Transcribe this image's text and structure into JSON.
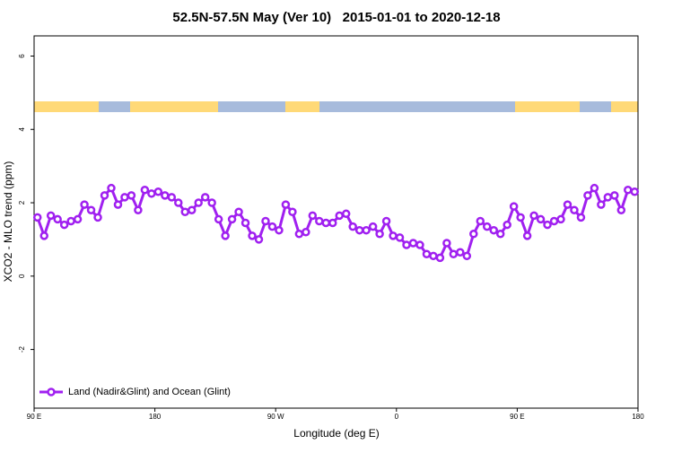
{
  "chart_data": {
    "type": "line",
    "title": "52.5N-57.5N May (Ver 10)   2015-01-01 to 2020-12-18",
    "xlabel": "Longitude (deg E)",
    "ylabel": "XCO2 - MLO trend (ppm)",
    "x": [
      92.5,
      97.5,
      102.5,
      107.5,
      112.5,
      117.5,
      122.5,
      127.5,
      132.5,
      137.5,
      142.5,
      147.5,
      152.5,
      157.5,
      162.5,
      167.5,
      172.5,
      177.5,
      182.5,
      187.5,
      192.5,
      197.5,
      202.5,
      207.5,
      212.5,
      217.5,
      222.5,
      227.5,
      232.5,
      237.5,
      242.5,
      247.5,
      252.5,
      257.5,
      262.5,
      267.5,
      272.5,
      277.5,
      282.5,
      287.5,
      292.5,
      297.5,
      302.5,
      307.5,
      312.5,
      317.5,
      322.5,
      327.5,
      332.5,
      337.5,
      342.5,
      347.5,
      352.5,
      357.5,
      362.5,
      367.5,
      372.5,
      377.5,
      382.5,
      387.5,
      392.5,
      397.5,
      402.5,
      407.5,
      412.5,
      417.5,
      422.5,
      427.5,
      432.5,
      437.5,
      442.5,
      447.5,
      452.5,
      457.5,
      462.5,
      467.5,
      472.5,
      477.5,
      482.5,
      487.5,
      492.5,
      497.5,
      502.5,
      507.5,
      512.5,
      517.5,
      522.5,
      527.5,
      532.5,
      537.5
    ],
    "series": [
      {
        "name": "Land (Nadir&Glint) and Ocean (Glint)",
        "color": "#a020f0",
        "values": [
          1.6,
          1.1,
          1.65,
          1.55,
          1.4,
          1.5,
          1.55,
          1.95,
          1.8,
          1.6,
          2.2,
          2.4,
          1.95,
          2.15,
          2.2,
          1.8,
          2.35,
          2.25,
          2.3,
          2.2,
          2.15,
          2.0,
          1.75,
          1.8,
          2.0,
          2.15,
          2.0,
          1.55,
          1.1,
          1.55,
          1.75,
          1.45,
          1.1,
          1.0,
          1.5,
          1.35,
          1.25,
          1.95,
          1.75,
          1.15,
          1.2,
          1.65,
          1.5,
          1.45,
          1.45,
          1.65,
          1.7,
          1.35,
          1.25,
          1.25,
          1.35,
          1.15,
          1.5,
          1.1,
          1.05,
          0.85,
          0.9,
          0.85,
          0.6,
          0.55,
          0.5,
          0.9,
          0.6,
          0.65,
          0.55,
          1.15,
          1.5,
          1.35,
          1.25,
          1.15,
          1.4,
          1.9,
          1.6,
          1.1,
          1.65,
          1.55,
          1.4,
          1.5,
          1.55,
          1.95,
          1.8,
          1.6,
          2.2,
          2.4,
          1.95,
          2.15,
          2.2,
          1.8,
          2.35,
          2.3
        ]
      }
    ],
    "xlim": [
      90,
      540
    ],
    "xticks": [
      {
        "value": 90,
        "label": "90 E"
      },
      {
        "value": 180,
        "label": "180"
      },
      {
        "value": 270,
        "label": "90 W"
      },
      {
        "value": 360,
        "label": "0"
      },
      {
        "value": 450,
        "label": "90 E"
      },
      {
        "value": 540,
        "label": "180"
      }
    ],
    "ylim": [
      -3.6,
      6.55
    ],
    "yticks": [
      6,
      4,
      2,
      0,
      -2
    ],
    "legend": "bottom-left"
  }
}
